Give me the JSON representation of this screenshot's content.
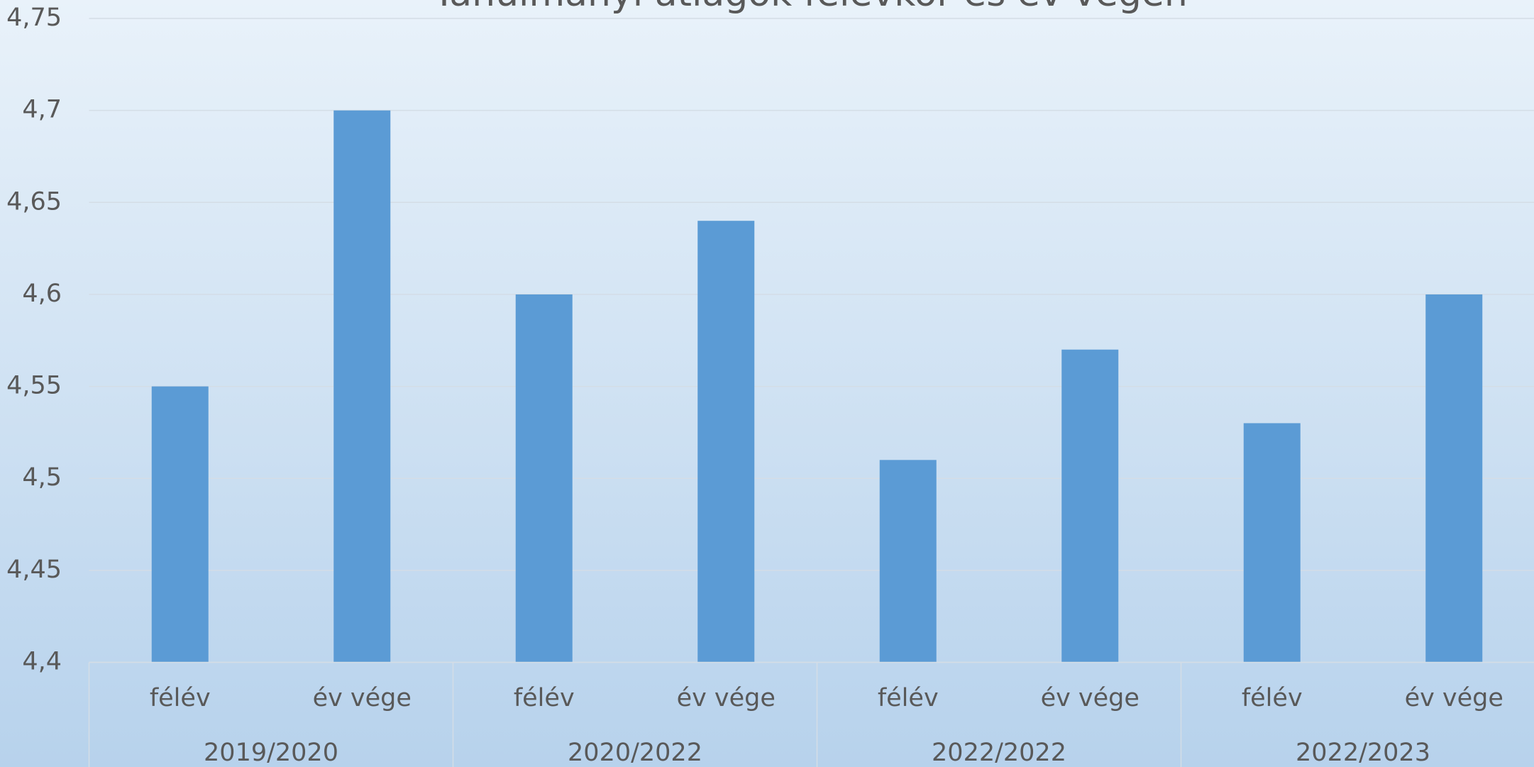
{
  "chart_data": {
    "type": "bar",
    "title": "Tanulmányi átlagok félévkor és év végén",
    "categories": [
      "félév",
      "év vége",
      "félév",
      "év vége",
      "félév",
      "év vége",
      "félév",
      "év vége"
    ],
    "groups": [
      "2019/2020",
      "2020/2022",
      "2022/2022",
      "2022/2023"
    ],
    "values": [
      4.55,
      4.7,
      4.6,
      4.64,
      4.51,
      4.57,
      4.53,
      4.6
    ],
    "color": "#5b9bd5",
    "ylim": [
      4.4,
      4.75
    ],
    "yticks": [
      {
        "value": 4.4,
        "label": "4,4"
      },
      {
        "value": 4.45,
        "label": "4,45"
      },
      {
        "value": 4.5,
        "label": "4,5"
      },
      {
        "value": 4.55,
        "label": "4,55"
      },
      {
        "value": 4.6,
        "label": "4,6"
      },
      {
        "value": 4.65,
        "label": "4,65"
      },
      {
        "value": 4.7,
        "label": "4,7"
      },
      {
        "value": 4.75,
        "label": "4,75"
      }
    ],
    "grid": true
  }
}
